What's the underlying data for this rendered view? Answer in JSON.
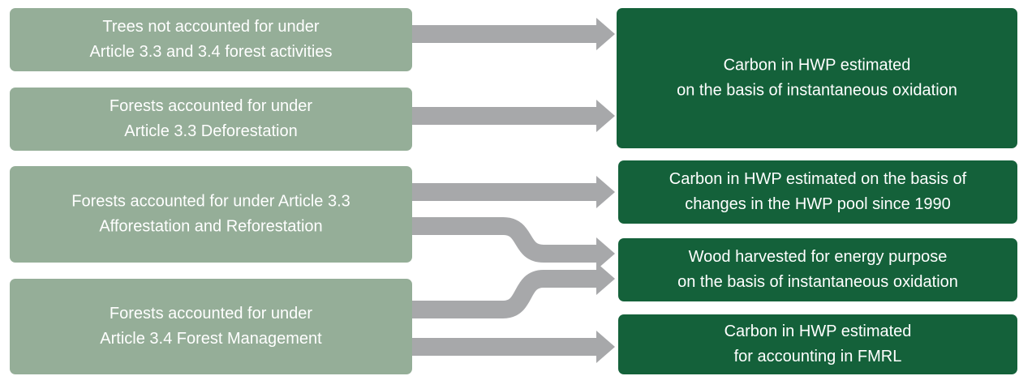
{
  "sources": [
    {
      "lines": [
        "Trees not accounted for under",
        "Article 3.3 and 3.4 forest activities"
      ]
    },
    {
      "lines": [
        "Forests accounted for under",
        "Article 3.3 Deforestation"
      ]
    },
    {
      "lines": [
        "Forests accounted for under Article 3.3",
        "Afforestation and Reforestation"
      ]
    },
    {
      "lines": [
        "Forests accounted for under",
        "Article 3.4 Forest Management"
      ]
    }
  ],
  "targets": [
    {
      "lines": [
        "Carbon in HWP estimated",
        "on the basis of instantaneous oxidation"
      ]
    },
    {
      "lines": [
        "Carbon in HWP estimated on the basis of",
        "changes in the HWP pool since 1990"
      ]
    },
    {
      "lines": [
        "Wood harvested for energy purpose",
        "on the basis of instantaneous oxidation"
      ]
    },
    {
      "lines": [
        "Carbon in HWP estimated",
        "for accounting in FMRL"
      ]
    }
  ]
}
